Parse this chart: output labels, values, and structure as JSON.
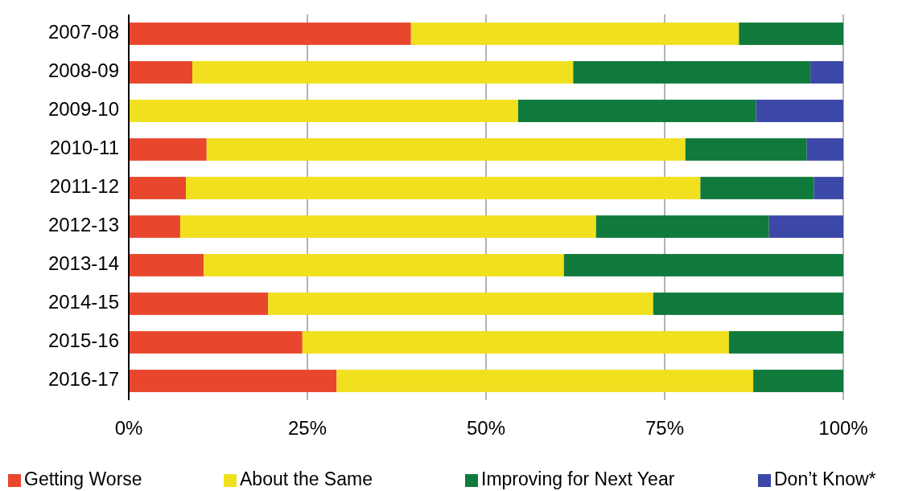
{
  "chart_data": {
    "type": "bar",
    "orientation": "horizontal",
    "stacked": true,
    "categories": [
      "2007-08",
      "2008-09",
      "2009-10",
      "2010-11",
      "2011-12",
      "2012-13",
      "2013-14",
      "2014-15",
      "2015-16",
      "2016-17"
    ],
    "series": [
      {
        "name": "Getting Worse",
        "color": "#e8472e",
        "values": [
          39.5,
          8.9,
          0,
          10.9,
          8.0,
          7.2,
          10.5,
          19.5,
          24.3,
          29.1
        ]
      },
      {
        "name": "About the Same",
        "color": "#f0e01e",
        "values": [
          45.9,
          53.3,
          54.5,
          67.0,
          72.0,
          58.2,
          50.4,
          53.9,
          59.7,
          58.3
        ]
      },
      {
        "name": "Improving for Next Year",
        "color": "#107a3c",
        "values": [
          14.6,
          33.2,
          33.3,
          17.0,
          15.9,
          24.2,
          39.1,
          26.6,
          16.0,
          12.6
        ]
      },
      {
        "name": "Don’t Know*",
        "color": "#3c48a8",
        "values": [
          0,
          4.6,
          12.2,
          5.1,
          4.1,
          10.4,
          0,
          0,
          0,
          0
        ]
      }
    ],
    "xlim": [
      0,
      100
    ],
    "xticks": [
      {
        "value": 0,
        "label": "0%"
      },
      {
        "value": 25,
        "label": "25%"
      },
      {
        "value": 50,
        "label": "50%"
      },
      {
        "value": 75,
        "label": "75%"
      },
      {
        "value": 100,
        "label": "100%"
      }
    ],
    "grid": "x",
    "legend": "bottom"
  }
}
